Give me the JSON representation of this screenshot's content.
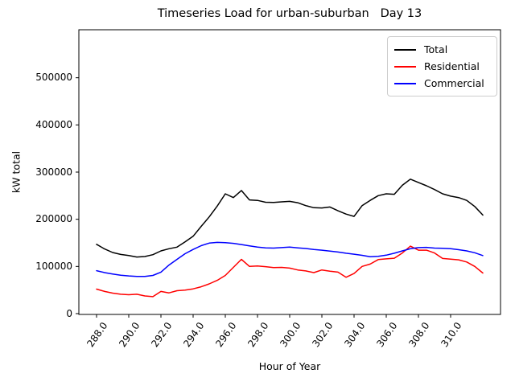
{
  "colors": {
    "background": "#ffffff",
    "axes": "#000000",
    "legend_border": "#cccccc"
  },
  "chart_data": {
    "type": "line",
    "title": "Timeseries Load for urban-suburban   Day 13",
    "xlabel": "Hour of Year",
    "ylabel": "kW total",
    "xlim": [
      286.9,
      313.1
    ],
    "ylim": [
      0,
      600000
    ],
    "grid": false,
    "legend": {
      "position": "upper right",
      "entries": [
        "Total",
        "Residential",
        "Commercial"
      ]
    },
    "x_ticks": {
      "values": [
        288,
        290,
        292,
        294,
        296,
        298,
        300,
        302,
        304,
        306,
        308,
        310
      ],
      "labels": [
        "288.0",
        "290.0",
        "292.0",
        "294.0",
        "296.0",
        "298.0",
        "300.0",
        "302.0",
        "304.0",
        "306.0",
        "308.0",
        "310.0"
      ]
    },
    "y_ticks": {
      "values": [
        0,
        100000,
        200000,
        300000,
        400000,
        500000
      ],
      "labels": [
        "0",
        "100000",
        "200000",
        "300000",
        "400000",
        "500000"
      ]
    },
    "x": [
      288,
      288.5,
      289,
      289.5,
      290,
      290.5,
      291,
      291.5,
      292,
      292.5,
      293,
      293.5,
      294,
      294.5,
      295,
      295.5,
      296,
      296.5,
      297,
      297.5,
      298,
      298.5,
      299,
      299.5,
      300,
      300.5,
      301,
      301.5,
      302,
      302.5,
      303,
      303.5,
      304,
      304.5,
      305,
      305.5,
      306,
      306.5,
      307,
      307.5,
      308,
      308.5,
      309,
      309.5,
      310,
      310.5,
      311,
      311.5,
      312
    ],
    "series": [
      {
        "name": "Total",
        "color": "#000000",
        "values": [
          147000,
          137000,
          129500,
          125500,
          123000,
          120000,
          121000,
          125000,
          133000,
          137500,
          141000,
          152000,
          164000,
          185000,
          205000,
          228000,
          254000,
          246000,
          261000,
          241000,
          240000,
          236000,
          235500,
          237000,
          238000,
          235000,
          229000,
          224500,
          224000,
          226000,
          218000,
          211000,
          206000,
          229000,
          240000,
          250000,
          254000,
          253000,
          272000,
          285000,
          278000,
          271000,
          263000,
          254000,
          249000,
          246000,
          240000,
          227000,
          209000
        ]
      },
      {
        "name": "Residential",
        "color": "#ff0000",
        "values": [
          52000,
          47000,
          43500,
          41000,
          40000,
          41000,
          37500,
          36000,
          47000,
          44000,
          48500,
          50000,
          52500,
          57000,
          63000,
          70500,
          81000,
          98000,
          115000,
          100000,
          101000,
          99500,
          97500,
          98000,
          96500,
          92500,
          90500,
          87000,
          92500,
          90000,
          88000,
          77000,
          85000,
          100000,
          105000,
          114500,
          116000,
          117500,
          128500,
          143000,
          134500,
          134500,
          128500,
          117000,
          115500,
          114000,
          109500,
          100000,
          86000
        ]
      },
      {
        "name": "Commercial",
        "color": "#0000ff",
        "values": [
          91000,
          87000,
          84000,
          81500,
          80000,
          79000,
          79000,
          81000,
          88000,
          103000,
          115000,
          127000,
          136000,
          144000,
          149500,
          151000,
          150500,
          149000,
          146500,
          143500,
          141000,
          139500,
          139000,
          140000,
          141000,
          139500,
          138000,
          136000,
          134500,
          132500,
          130500,
          128000,
          126000,
          123500,
          120500,
          121500,
          124000,
          128000,
          133000,
          137500,
          140000,
          140500,
          139000,
          138500,
          137500,
          135500,
          133000,
          129000,
          123000
        ]
      }
    ]
  }
}
